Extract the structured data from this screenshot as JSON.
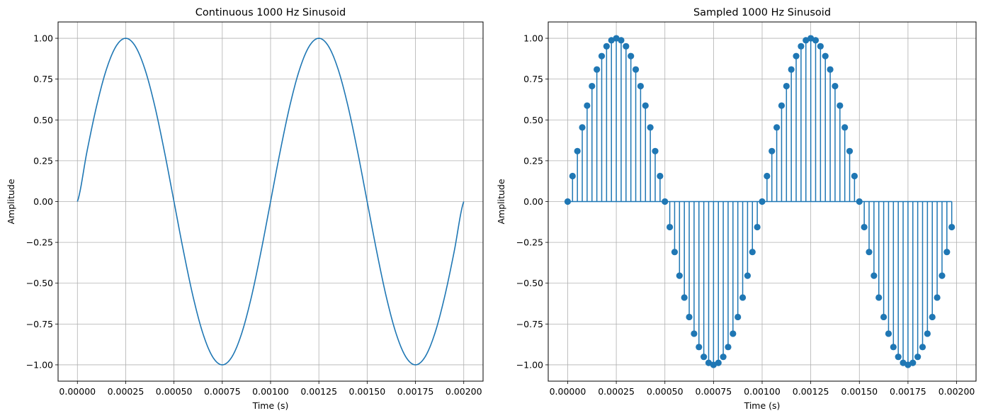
{
  "chart_data": [
    {
      "type": "line",
      "title": "Continuous 1000 Hz Sinusoid",
      "xlabel": "Time (s)",
      "ylabel": "Amplitude",
      "xlim": [
        -0.0001,
        0.0021
      ],
      "ylim": [
        -1.1,
        1.1
      ],
      "xticks": [
        0.0,
        0.00025,
        0.0005,
        0.00075,
        0.001,
        0.00125,
        0.0015,
        0.00175,
        0.002
      ],
      "xtick_labels": [
        "0.00000",
        "0.00025",
        "0.00050",
        "0.00075",
        "0.00100",
        "0.00125",
        "0.00150",
        "0.00175",
        "0.00200"
      ],
      "yticks": [
        -1.0,
        -0.75,
        -0.5,
        -0.25,
        0.0,
        0.25,
        0.5,
        0.75,
        1.0
      ],
      "ytick_labels": [
        "−1.00",
        "−0.75",
        "−0.50",
        "−0.25",
        "0.00",
        "0.25",
        "0.50",
        "0.75",
        "1.00"
      ],
      "grid": true,
      "series": [
        {
          "color": "#1f77b4",
          "x": [
            0.0,
            5e-05,
            0.0001,
            0.00015,
            0.0002,
            0.00025,
            0.0003,
            0.00035,
            0.0004,
            0.00045,
            0.0005,
            0.00055,
            0.0006,
            0.00065,
            0.0007,
            0.00075,
            0.0008,
            0.00085,
            0.0009,
            0.00095,
            0.001,
            0.00105,
            0.0011,
            0.00115,
            0.0012,
            0.00125,
            0.0013,
            0.00135,
            0.0014,
            0.00145,
            0.0015,
            0.00155,
            0.0016,
            0.00165,
            0.0017,
            0.00175,
            0.0018,
            0.00185,
            0.0019,
            0.00195,
            0.002
          ],
          "y": [
            0.0,
            0.309,
            0.588,
            0.809,
            0.951,
            1.0,
            0.951,
            0.809,
            0.588,
            0.309,
            0.0,
            -0.309,
            -0.588,
            -0.809,
            -0.951,
            -1.0,
            -0.951,
            -0.809,
            -0.588,
            -0.309,
            0.0,
            0.309,
            0.588,
            0.809,
            0.951,
            1.0,
            0.951,
            0.809,
            0.588,
            0.309,
            0.0,
            -0.309,
            -0.588,
            -0.809,
            -0.951,
            -1.0,
            -0.951,
            -0.809,
            -0.588,
            -0.309,
            0.0
          ]
        }
      ]
    },
    {
      "type": "scatter",
      "style": "stem",
      "title": "Sampled 1000 Hz Sinusoid",
      "xlabel": "Time (s)",
      "ylabel": "Amplitude",
      "xlim": [
        -0.0001,
        0.0021
      ],
      "ylim": [
        -1.1,
        1.1
      ],
      "xticks": [
        0.0,
        0.00025,
        0.0005,
        0.00075,
        0.001,
        0.00125,
        0.0015,
        0.00175,
        0.002
      ],
      "xtick_labels": [
        "0.00000",
        "0.00025",
        "0.00050",
        "0.00075",
        "0.00100",
        "0.00125",
        "0.00150",
        "0.00175",
        "0.00200"
      ],
      "yticks": [
        -1.0,
        -0.75,
        -0.5,
        -0.25,
        0.0,
        0.25,
        0.5,
        0.75,
        1.0
      ],
      "ytick_labels": [
        "−1.00",
        "−0.75",
        "−0.50",
        "−0.25",
        "0.00",
        "0.25",
        "0.50",
        "0.75",
        "1.00"
      ],
      "grid": true,
      "series": [
        {
          "color": "#1f77b4",
          "x": [
            0.0,
            2.5e-05,
            5e-05,
            7.5e-05,
            0.0001,
            0.000125,
            0.00015,
            0.000175,
            0.0002,
            0.000225,
            0.00025,
            0.000275,
            0.0003,
            0.000325,
            0.00035,
            0.000375,
            0.0004,
            0.000425,
            0.00045,
            0.000475,
            0.0005,
            0.000525,
            0.00055,
            0.000575,
            0.0006,
            0.000625,
            0.00065,
            0.000675,
            0.0007,
            0.000725,
            0.00075,
            0.000775,
            0.0008,
            0.000825,
            0.00085,
            0.000875,
            0.0009,
            0.000925,
            0.00095,
            0.000975,
            0.001,
            0.001025,
            0.00105,
            0.001075,
            0.0011,
            0.001125,
            0.00115,
            0.001175,
            0.0012,
            0.001225,
            0.00125,
            0.001275,
            0.0013,
            0.001325,
            0.00135,
            0.001375,
            0.0014,
            0.001425,
            0.00145,
            0.001475,
            0.0015,
            0.001525,
            0.00155,
            0.001575,
            0.0016,
            0.001625,
            0.00165,
            0.001675,
            0.0017,
            0.001725,
            0.00175,
            0.001775,
            0.0018,
            0.001825,
            0.00185,
            0.001875,
            0.0019,
            0.001925,
            0.00195,
            0.001975
          ],
          "y": [
            0.0,
            0.1564,
            0.309,
            0.454,
            0.5878,
            0.7071,
            0.809,
            0.891,
            0.9511,
            0.9877,
            1.0,
            0.9877,
            0.9511,
            0.891,
            0.809,
            0.7071,
            0.5878,
            0.454,
            0.309,
            0.1564,
            0.0,
            -0.1564,
            -0.309,
            -0.454,
            -0.5878,
            -0.7071,
            -0.809,
            -0.891,
            -0.9511,
            -0.9877,
            -1.0,
            -0.9877,
            -0.9511,
            -0.891,
            -0.809,
            -0.7071,
            -0.5878,
            -0.454,
            -0.309,
            -0.1564,
            0.0,
            0.1564,
            0.309,
            0.454,
            0.5878,
            0.7071,
            0.809,
            0.891,
            0.9511,
            0.9877,
            1.0,
            0.9877,
            0.9511,
            0.891,
            0.809,
            0.7071,
            0.5878,
            0.454,
            0.309,
            0.1564,
            0.0,
            -0.1564,
            -0.309,
            -0.454,
            -0.5878,
            -0.7071,
            -0.809,
            -0.891,
            -0.9511,
            -0.9877,
            -1.0,
            -0.9877,
            -0.9511,
            -0.891,
            -0.809,
            -0.7071,
            -0.5878,
            -0.454,
            -0.309,
            -0.1564
          ]
        }
      ]
    }
  ]
}
